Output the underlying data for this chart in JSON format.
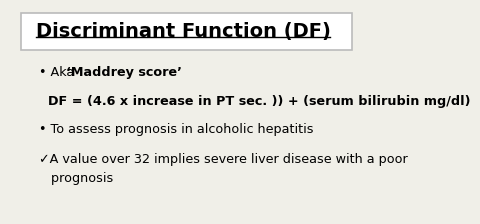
{
  "title": "Discriminant Function (DF)",
  "bg_color": "#f0efe8",
  "title_box_color": "#ffffff",
  "title_box_edge": "#bbbbbb",
  "title_color": "#000000",
  "title_fontsize": 14,
  "bullet1_prefix": "• Aka ",
  "bullet1_bold": "‘Maddrey score’",
  "formula": "  DF = (4.6 x increase in PT sec. )) + (serum bilirubin mg/dl)",
  "bullet2": "• To assess prognosis in alcoholic hepatitis",
  "bullet3_line1": "✓A value over 32 implies severe liver disease with a poor",
  "bullet3_line2": "   prognosis",
  "text_color": "#000000",
  "text_fontsize": 9.2,
  "formula_fontsize": 9.2
}
